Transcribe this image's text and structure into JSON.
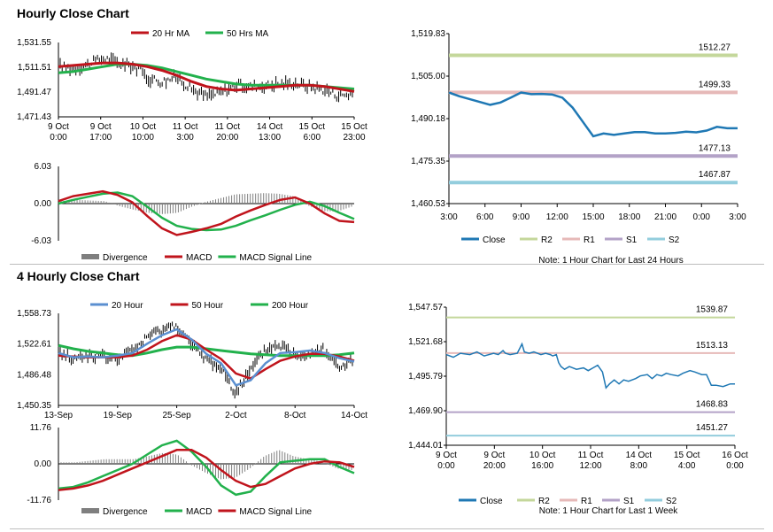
{
  "page": {
    "title_hourly": "Hourly Close Chart",
    "title_4hourly": "4 Hourly Close Chart"
  },
  "colors": {
    "ma_red": "#c0141c",
    "ma_green": "#22b14c",
    "ma_blue": "#5b8fd0",
    "close_blue": "#1f78b4",
    "r2": "#c4d79b",
    "r1": "#e6b9b8",
    "s1": "#b3a2c7",
    "s2": "#93cddd",
    "bars": "#7f7f7f"
  },
  "chart_data": [
    {
      "id": "hourly_price",
      "type": "line",
      "ylim": [
        1471.43,
        1531.55
      ],
      "yticks": [
        "1,531.55",
        "1,511.51",
        "1,491.47",
        "1,471.43"
      ],
      "xticks": [
        [
          "9 Oct",
          "0:00"
        ],
        [
          "9 Oct",
          "17:00"
        ],
        [
          "10 Oct",
          "10:00"
        ],
        [
          "11 Oct",
          "3:00"
        ],
        [
          "11 Oct",
          "20:00"
        ],
        [
          "14 Oct",
          "13:00"
        ],
        [
          "15 Oct",
          "6:00"
        ],
        [
          "15 Oct",
          "23:00"
        ]
      ],
      "legend": [
        "20 Hr MA",
        "50 Hrs MA"
      ],
      "series": [
        {
          "name": "20 Hr MA",
          "color_key": "ma_red",
          "values": [
            1512,
            1513,
            1514,
            1515,
            1515,
            1514,
            1512,
            1509,
            1505,
            1500,
            1496,
            1494,
            1493,
            1494,
            1495,
            1496,
            1497,
            1497,
            1496,
            1494,
            1492
          ]
        },
        {
          "name": "50 Hrs MA",
          "color_key": "ma_green",
          "values": [
            1507,
            1508,
            1510,
            1512,
            1514,
            1514,
            1513,
            1511,
            1508,
            1505,
            1502,
            1500,
            1498,
            1497,
            1497,
            1497,
            1497,
            1497,
            1496,
            1495,
            1494
          ]
        },
        {
          "name": "price",
          "color_key": "",
          "values": [
            1512,
            1511,
            1514,
            1519,
            1515,
            1513,
            1503,
            1500,
            1504,
            1494,
            1488,
            1491,
            1497,
            1496,
            1497,
            1498,
            1499,
            1496,
            1494,
            1489,
            1490
          ]
        }
      ]
    },
    {
      "id": "hourly_macd",
      "type": "line",
      "ylim": [
        -6.03,
        6.03
      ],
      "yticks": [
        "6.03",
        "0.00",
        "-6.03"
      ],
      "legend": [
        "Divergence",
        "MACD",
        "MACD Signal Line"
      ],
      "series": [
        {
          "name": "MACD",
          "color_key": "ma_red",
          "values": [
            0.4,
            1.2,
            1.6,
            2.0,
            1.4,
            0.2,
            -2.0,
            -4.0,
            -5.1,
            -4.6,
            -4.0,
            -3.3,
            -2.1,
            -1.1,
            -0.2,
            0.6,
            1.0,
            0.0,
            -1.6,
            -2.8,
            -3.0
          ]
        },
        {
          "name": "MACD Signal Line",
          "color_key": "ma_green",
          "values": [
            0.0,
            0.6,
            1.1,
            1.6,
            1.8,
            1.2,
            -0.5,
            -2.3,
            -3.6,
            -4.1,
            -4.3,
            -4.2,
            -3.6,
            -2.7,
            -1.9,
            -1.0,
            -0.2,
            0.3,
            -0.4,
            -1.5,
            -2.5
          ]
        },
        {
          "name": "Divergence",
          "color_key": "bars",
          "values": [
            0.4,
            0.6,
            0.5,
            0.4,
            -0.4,
            -1.0,
            -1.5,
            -1.7,
            -1.5,
            -0.5,
            0.3,
            0.9,
            1.5,
            1.6,
            1.7,
            1.6,
            1.2,
            -0.3,
            -1.2,
            -1.3,
            -0.5
          ]
        }
      ]
    },
    {
      "id": "hourly_close_24h",
      "type": "line",
      "ylim": [
        1460.53,
        1519.83
      ],
      "yticks": [
        "1,519.83",
        "1,505.00",
        "1,490.18",
        "1,475.35",
        "1,460.53"
      ],
      "x": [
        "3:00",
        "6:00",
        "9:00",
        "12:00",
        "15:00",
        "18:00",
        "21:00",
        "0:00",
        "3:00"
      ],
      "levels": [
        {
          "name": "R2",
          "value": 1512.27,
          "label": "1512.27",
          "color_key": "r2"
        },
        {
          "name": "R1",
          "value": 1499.33,
          "label": "1499.33",
          "color_key": "r1"
        },
        {
          "name": "S1",
          "value": 1477.13,
          "label": "1477.13",
          "color_key": "s1"
        },
        {
          "name": "S2",
          "value": 1467.87,
          "label": "1467.87",
          "color_key": "s2"
        }
      ],
      "series": [
        {
          "name": "Close",
          "color_key": "close_blue",
          "values": [
            [
              0,
              1499.3
            ],
            [
              1,
              1498
            ],
            [
              2,
              1497
            ],
            [
              3,
              1496
            ],
            [
              4,
              1495
            ],
            [
              5,
              1495.8
            ],
            [
              6,
              1497.5
            ],
            [
              7,
              1499.3
            ],
            [
              8,
              1498.7
            ],
            [
              9,
              1498.8
            ],
            [
              10,
              1498.6
            ],
            [
              11,
              1497.5
            ],
            [
              12,
              1494
            ],
            [
              13,
              1489
            ],
            [
              14,
              1484
            ],
            [
              15,
              1485
            ],
            [
              16,
              1484.5
            ],
            [
              17,
              1485
            ],
            [
              18,
              1485.5
            ],
            [
              19,
              1485.5
            ],
            [
              20,
              1485
            ],
            [
              21,
              1485
            ],
            [
              22,
              1485.2
            ],
            [
              23,
              1485.6
            ],
            [
              24,
              1485.4
            ],
            [
              25,
              1486
            ],
            [
              26,
              1487.3
            ],
            [
              27,
              1486.8
            ],
            [
              28,
              1486.8
            ]
          ]
        }
      ],
      "legend": [
        "Close",
        "R2",
        "R1",
        "S1",
        "S2"
      ],
      "note": "Note: 1 Hour Chart for Last 24 Hours"
    },
    {
      "id": "4hourly_price",
      "type": "line",
      "ylim": [
        1450.35,
        1558.73
      ],
      "yticks": [
        "1,558.73",
        "1,522.61",
        "1,486.48",
        "1,450.35"
      ],
      "xticks": [
        "13-Sep",
        "19-Sep",
        "25-Sep",
        "2-Oct",
        "8-Oct",
        "14-Oct"
      ],
      "legend": [
        "20 Hour",
        "50 Hour",
        "200 Hour"
      ],
      "series": [
        {
          "name": "20 Hour",
          "color_key": "ma_blue",
          "values": [
            1512,
            1507,
            1508,
            1507,
            1509,
            1512,
            1523,
            1533,
            1540,
            1528,
            1511,
            1500,
            1474,
            1480,
            1500,
            1512,
            1513,
            1515,
            1512,
            1506,
            1502
          ]
        },
        {
          "name": "50 Hour",
          "color_key": "ma_red",
          "values": [
            1509,
            1508,
            1507,
            1507,
            1507,
            1509,
            1516,
            1526,
            1533,
            1528,
            1516,
            1505,
            1488,
            1482,
            1493,
            1503,
            1508,
            1511,
            1511,
            1508,
            1503
          ]
        },
        {
          "name": "200 Hour",
          "color_key": "ma_green",
          "values": [
            1521,
            1517,
            1514,
            1512,
            1510,
            1509,
            1512,
            1516,
            1519,
            1519,
            1517,
            1515,
            1513,
            1511,
            1510,
            1509,
            1509,
            1509,
            1509,
            1510,
            1512
          ]
        },
        {
          "name": "price",
          "color_key": "",
          "values": [
            1512,
            1505,
            1510,
            1507,
            1505,
            1515,
            1531,
            1540,
            1545,
            1520,
            1505,
            1494,
            1466,
            1490,
            1515,
            1522,
            1510,
            1512,
            1518,
            1495,
            1502
          ]
        }
      ]
    },
    {
      "id": "4hourly_macd",
      "type": "line",
      "ylim": [
        -11.76,
        11.76
      ],
      "yticks": [
        "11.76",
        "0.00",
        "-11.76"
      ],
      "legend": [
        "Divergence",
        "MACD",
        "MACD Signal Line"
      ],
      "series": [
        {
          "name": "MACD",
          "color_key": "ma_green",
          "values": [
            -8,
            -7.5,
            -6,
            -4,
            -2,
            0,
            3,
            6,
            7.5,
            4,
            -1,
            -7,
            -10,
            -9,
            -4,
            0.5,
            1,
            1.5,
            1.5,
            -1,
            -3
          ]
        },
        {
          "name": "MACD Signal Line",
          "color_key": "ma_red",
          "values": [
            -8.5,
            -8,
            -7,
            -5.5,
            -3.5,
            -1.5,
            0.5,
            2.5,
            4.5,
            4.5,
            2,
            -2,
            -5.5,
            -7.5,
            -6.5,
            -4,
            -1.5,
            0,
            0.8,
            0.5,
            -1
          ]
        },
        {
          "name": "Divergence",
          "color_key": "bars",
          "values": [
            0.5,
            0.5,
            1,
            1.5,
            1.5,
            1.5,
            2.5,
            3.5,
            3,
            -0.5,
            -3,
            -5,
            -4.5,
            -1.5,
            2.5,
            4.5,
            2.5,
            1.5,
            0.7,
            -1.5,
            -2
          ]
        }
      ]
    },
    {
      "id": "1week_close",
      "type": "line",
      "ylim": [
        1444.01,
        1547.57
      ],
      "yticks": [
        "1,547.57",
        "1,521.68",
        "1,495.79",
        "1,469.90",
        "1,444.01"
      ],
      "xticks": [
        [
          "9 Oct",
          "0:00"
        ],
        [
          "9 Oct",
          "20:00"
        ],
        [
          "10 Oct",
          "16:00"
        ],
        [
          "11 Oct",
          "12:00"
        ],
        [
          "14 Oct",
          "8:00"
        ],
        [
          "15 Oct",
          "4:00"
        ],
        [
          "16 Oct",
          "0:00"
        ]
      ],
      "levels": [
        {
          "name": "R2",
          "value": 1539.87,
          "label": "1539.87",
          "color_key": "r2"
        },
        {
          "name": "R1",
          "value": 1513.13,
          "label": "1513.13",
          "color_key": "r1"
        },
        {
          "name": "S1",
          "value": 1468.83,
          "label": "1468.83",
          "color_key": "s1"
        },
        {
          "name": "S2",
          "value": 1451.27,
          "label": "1451.27",
          "color_key": "s2"
        }
      ],
      "series": [
        {
          "name": "Close",
          "color_key": "close_blue",
          "values": [
            [
              0,
              1512
            ],
            [
              0.3,
              1510
            ],
            [
              0.6,
              1513
            ],
            [
              1,
              1512
            ],
            [
              1.3,
              1514
            ],
            [
              1.6,
              1511
            ],
            [
              2,
              1513
            ],
            [
              2.2,
              1512
            ],
            [
              2.4,
              1515
            ],
            [
              2.5,
              1513
            ],
            [
              2.7,
              1512
            ],
            [
              3.0,
              1513
            ],
            [
              3.2,
              1520
            ],
            [
              3.3,
              1514
            ],
            [
              3.5,
              1513
            ],
            [
              3.7,
              1514
            ],
            [
              4.0,
              1512
            ],
            [
              4.2,
              1513
            ],
            [
              4.4,
              1512
            ],
            [
              4.5,
              1511
            ],
            [
              4.65,
              1512
            ],
            [
              4.75,
              1506
            ],
            [
              4.85,
              1503
            ],
            [
              5.0,
              1501
            ],
            [
              5.2,
              1503
            ],
            [
              5.5,
              1501
            ],
            [
              5.8,
              1502
            ],
            [
              6.0,
              1500
            ],
            [
              6.2,
              1502
            ],
            [
              6.4,
              1504
            ],
            [
              6.6,
              1499
            ],
            [
              6.75,
              1487
            ],
            [
              6.9,
              1490
            ],
            [
              7.1,
              1493
            ],
            [
              7.3,
              1490
            ],
            [
              7.5,
              1493
            ],
            [
              7.7,
              1492
            ],
            [
              8.0,
              1494
            ],
            [
              8.2,
              1496
            ],
            [
              8.5,
              1497
            ],
            [
              8.7,
              1494
            ],
            [
              8.9,
              1497
            ],
            [
              9.1,
              1496
            ],
            [
              9.3,
              1498
            ],
            [
              9.5,
              1497
            ],
            [
              9.8,
              1496
            ],
            [
              10.0,
              1498
            ],
            [
              10.3,
              1500
            ],
            [
              10.5,
              1499
            ],
            [
              10.8,
              1497
            ],
            [
              11.0,
              1497
            ],
            [
              11.2,
              1489
            ],
            [
              11.4,
              1489
            ],
            [
              11.7,
              1488
            ],
            [
              12.0,
              1490
            ],
            [
              12.2,
              1490
            ]
          ]
        }
      ],
      "legend": [
        "Close",
        "R2",
        "R1",
        "S1",
        "S2"
      ],
      "note": "Note: 1 Hour Chart for Last 1 Week"
    }
  ]
}
